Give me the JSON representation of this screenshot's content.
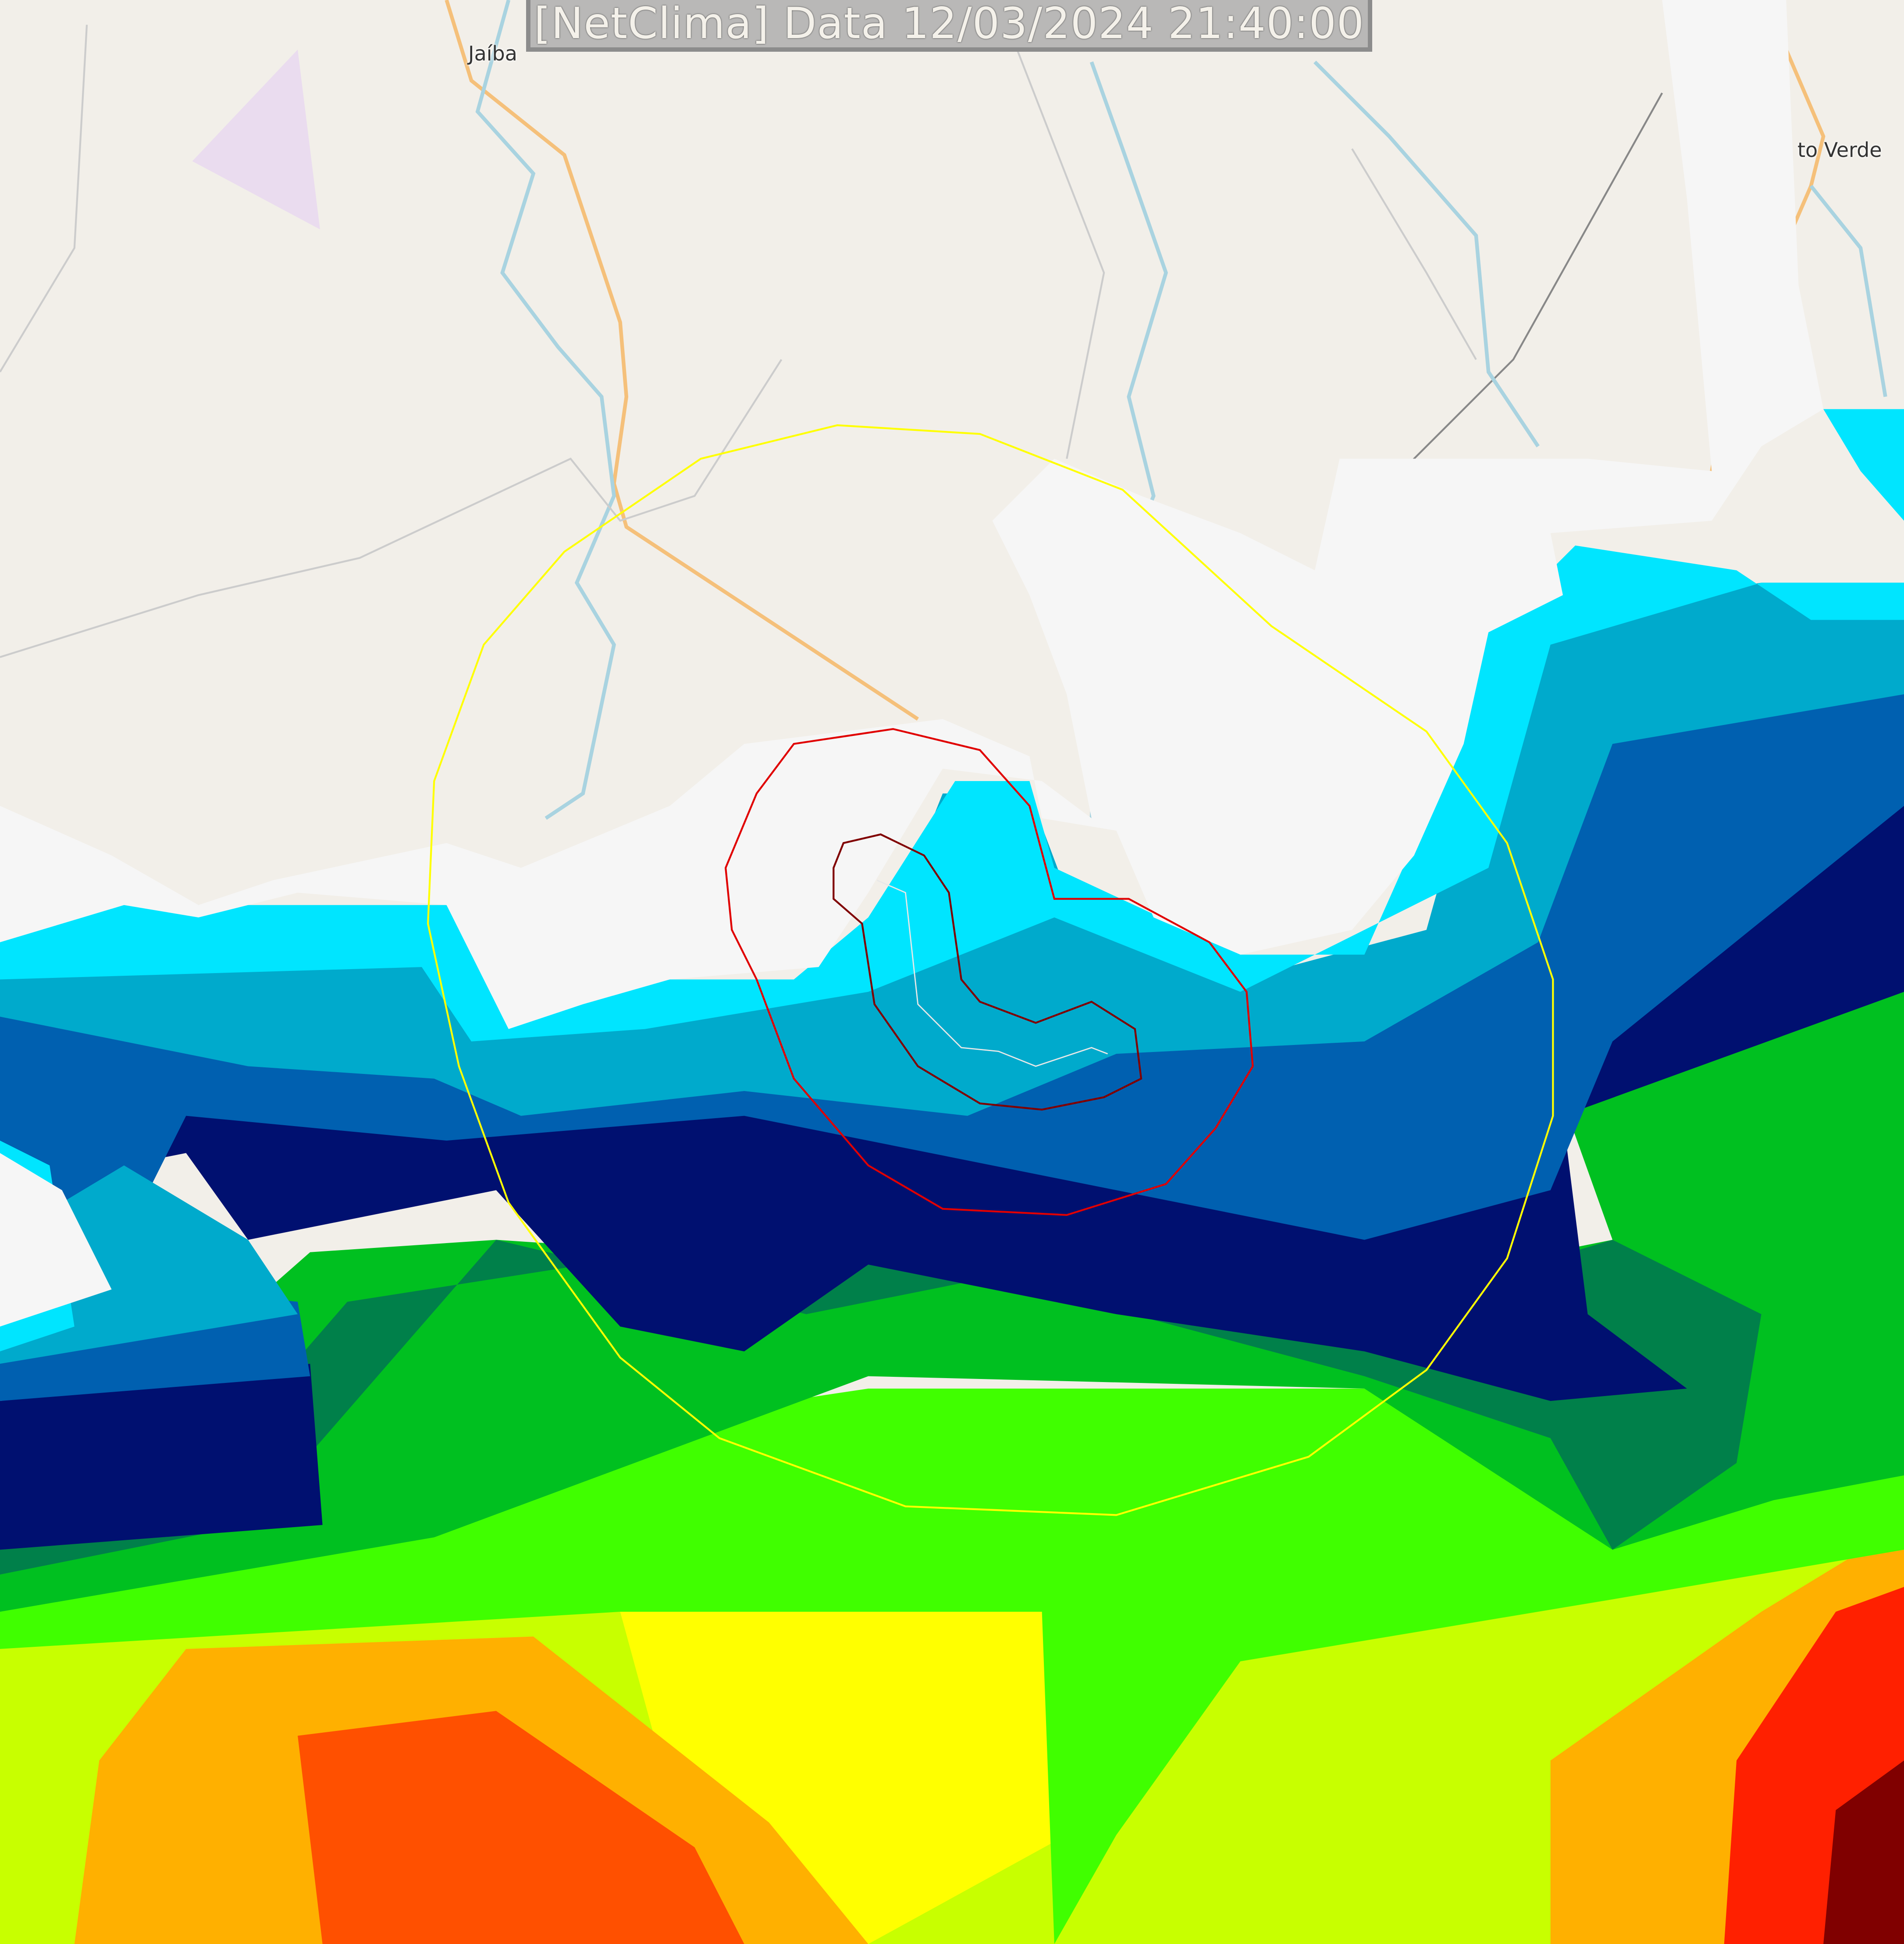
{
  "header": {
    "title": "[NetClima] Data 12/03/2024 21:40:00"
  },
  "map": {
    "place_labels": [
      "Jaíba",
      "to Verde"
    ],
    "colors": {
      "land": "#f2efe9",
      "road": "#f5c07a",
      "river": "#a9d3e0",
      "range_ring": "#ffff00",
      "cell_outline": "#e00000",
      "cell_core": "#800000",
      "track": "#e8e8e8"
    },
    "radar_palette": [
      "#ffffff",
      "#00e5ff",
      "#00aacc",
      "#0060b0",
      "#001070",
      "#00804a",
      "#00c020",
      "#40ff00",
      "#c8ff00",
      "#ffff00",
      "#ffb000",
      "#ff5000",
      "#d00000",
      "#800000"
    ]
  }
}
